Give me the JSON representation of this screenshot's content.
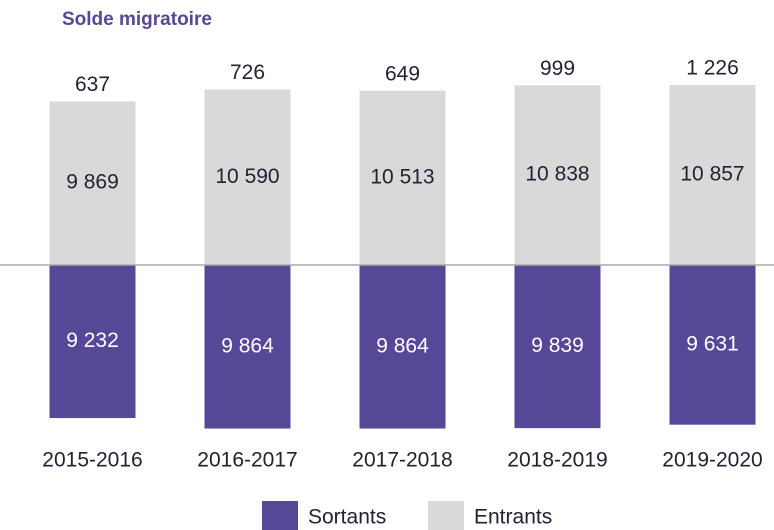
{
  "chart_data": {
    "type": "diverging_bar",
    "title": "Solde migratoire",
    "categories": [
      "2015-2016",
      "2016-2017",
      "2017-2018",
      "2018-2019",
      "2019-2020"
    ],
    "series": [
      {
        "name": "Sortants",
        "color": "#574797",
        "direction": "down",
        "values": [
          9232,
          9864,
          9864,
          9839,
          9631
        ],
        "value_labels": [
          "9 232",
          "9 864",
          "9 864",
          "9 839",
          "9 631"
        ]
      },
      {
        "name": "Entrants",
        "color": "#d9d9d9",
        "direction": "up",
        "values": [
          9869,
          10590,
          10513,
          10838,
          10857
        ],
        "value_labels": [
          "9 869",
          "10 590",
          "10 513",
          "10 838",
          "10 857"
        ]
      }
    ],
    "balance": {
      "values": [
        637,
        726,
        649,
        999,
        1226
      ],
      "value_labels": [
        "637",
        "726",
        "649",
        "999",
        "1 226"
      ]
    },
    "legend": "bottom"
  }
}
